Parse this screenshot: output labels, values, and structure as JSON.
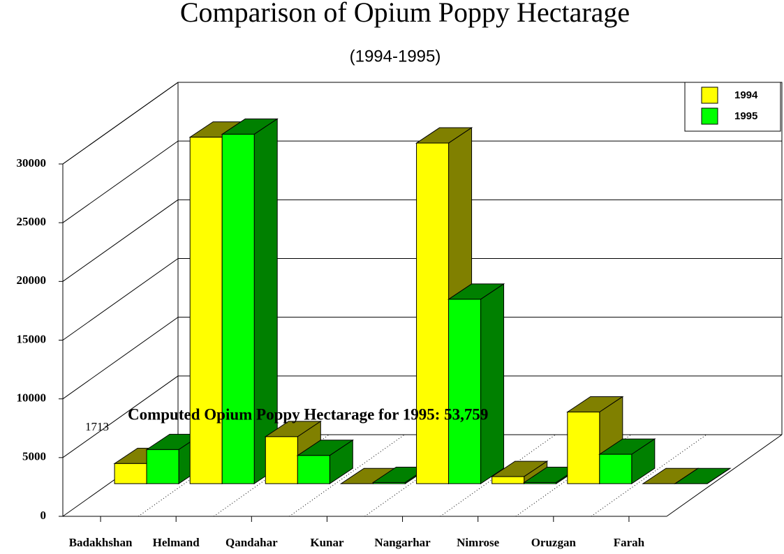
{
  "chart_data": {
    "type": "bar3d",
    "title": "Comparison of Opium Poppy Hectarage",
    "subtitle": "(1994-1995)",
    "categories": [
      "Badakhshan",
      "Helmand",
      "Qandahar",
      "Kunar",
      "Nangarhar",
      "Nimrose",
      "Oruzgan",
      "Farah"
    ],
    "series": [
      {
        "name": "1994",
        "color": "#ffff00",
        "side_color": "#808000",
        "values": [
          1713,
          29500,
          4000,
          0,
          29000,
          600,
          6100,
          0
        ]
      },
      {
        "name": "1995",
        "color": "#00ff00",
        "side_color": "#008000",
        "values": [
          2900,
          29750,
          2400,
          100,
          15700,
          100,
          2500,
          0
        ]
      }
    ],
    "ylim": [
      0,
      30000
    ],
    "yticks": [
      0,
      5000,
      10000,
      15000,
      20000,
      25000,
      30000
    ],
    "grid": true,
    "legend": "top-right",
    "annotations": [
      "1713",
      "Computed Opium Poppy Hectarage for 1995: 53,759"
    ]
  }
}
